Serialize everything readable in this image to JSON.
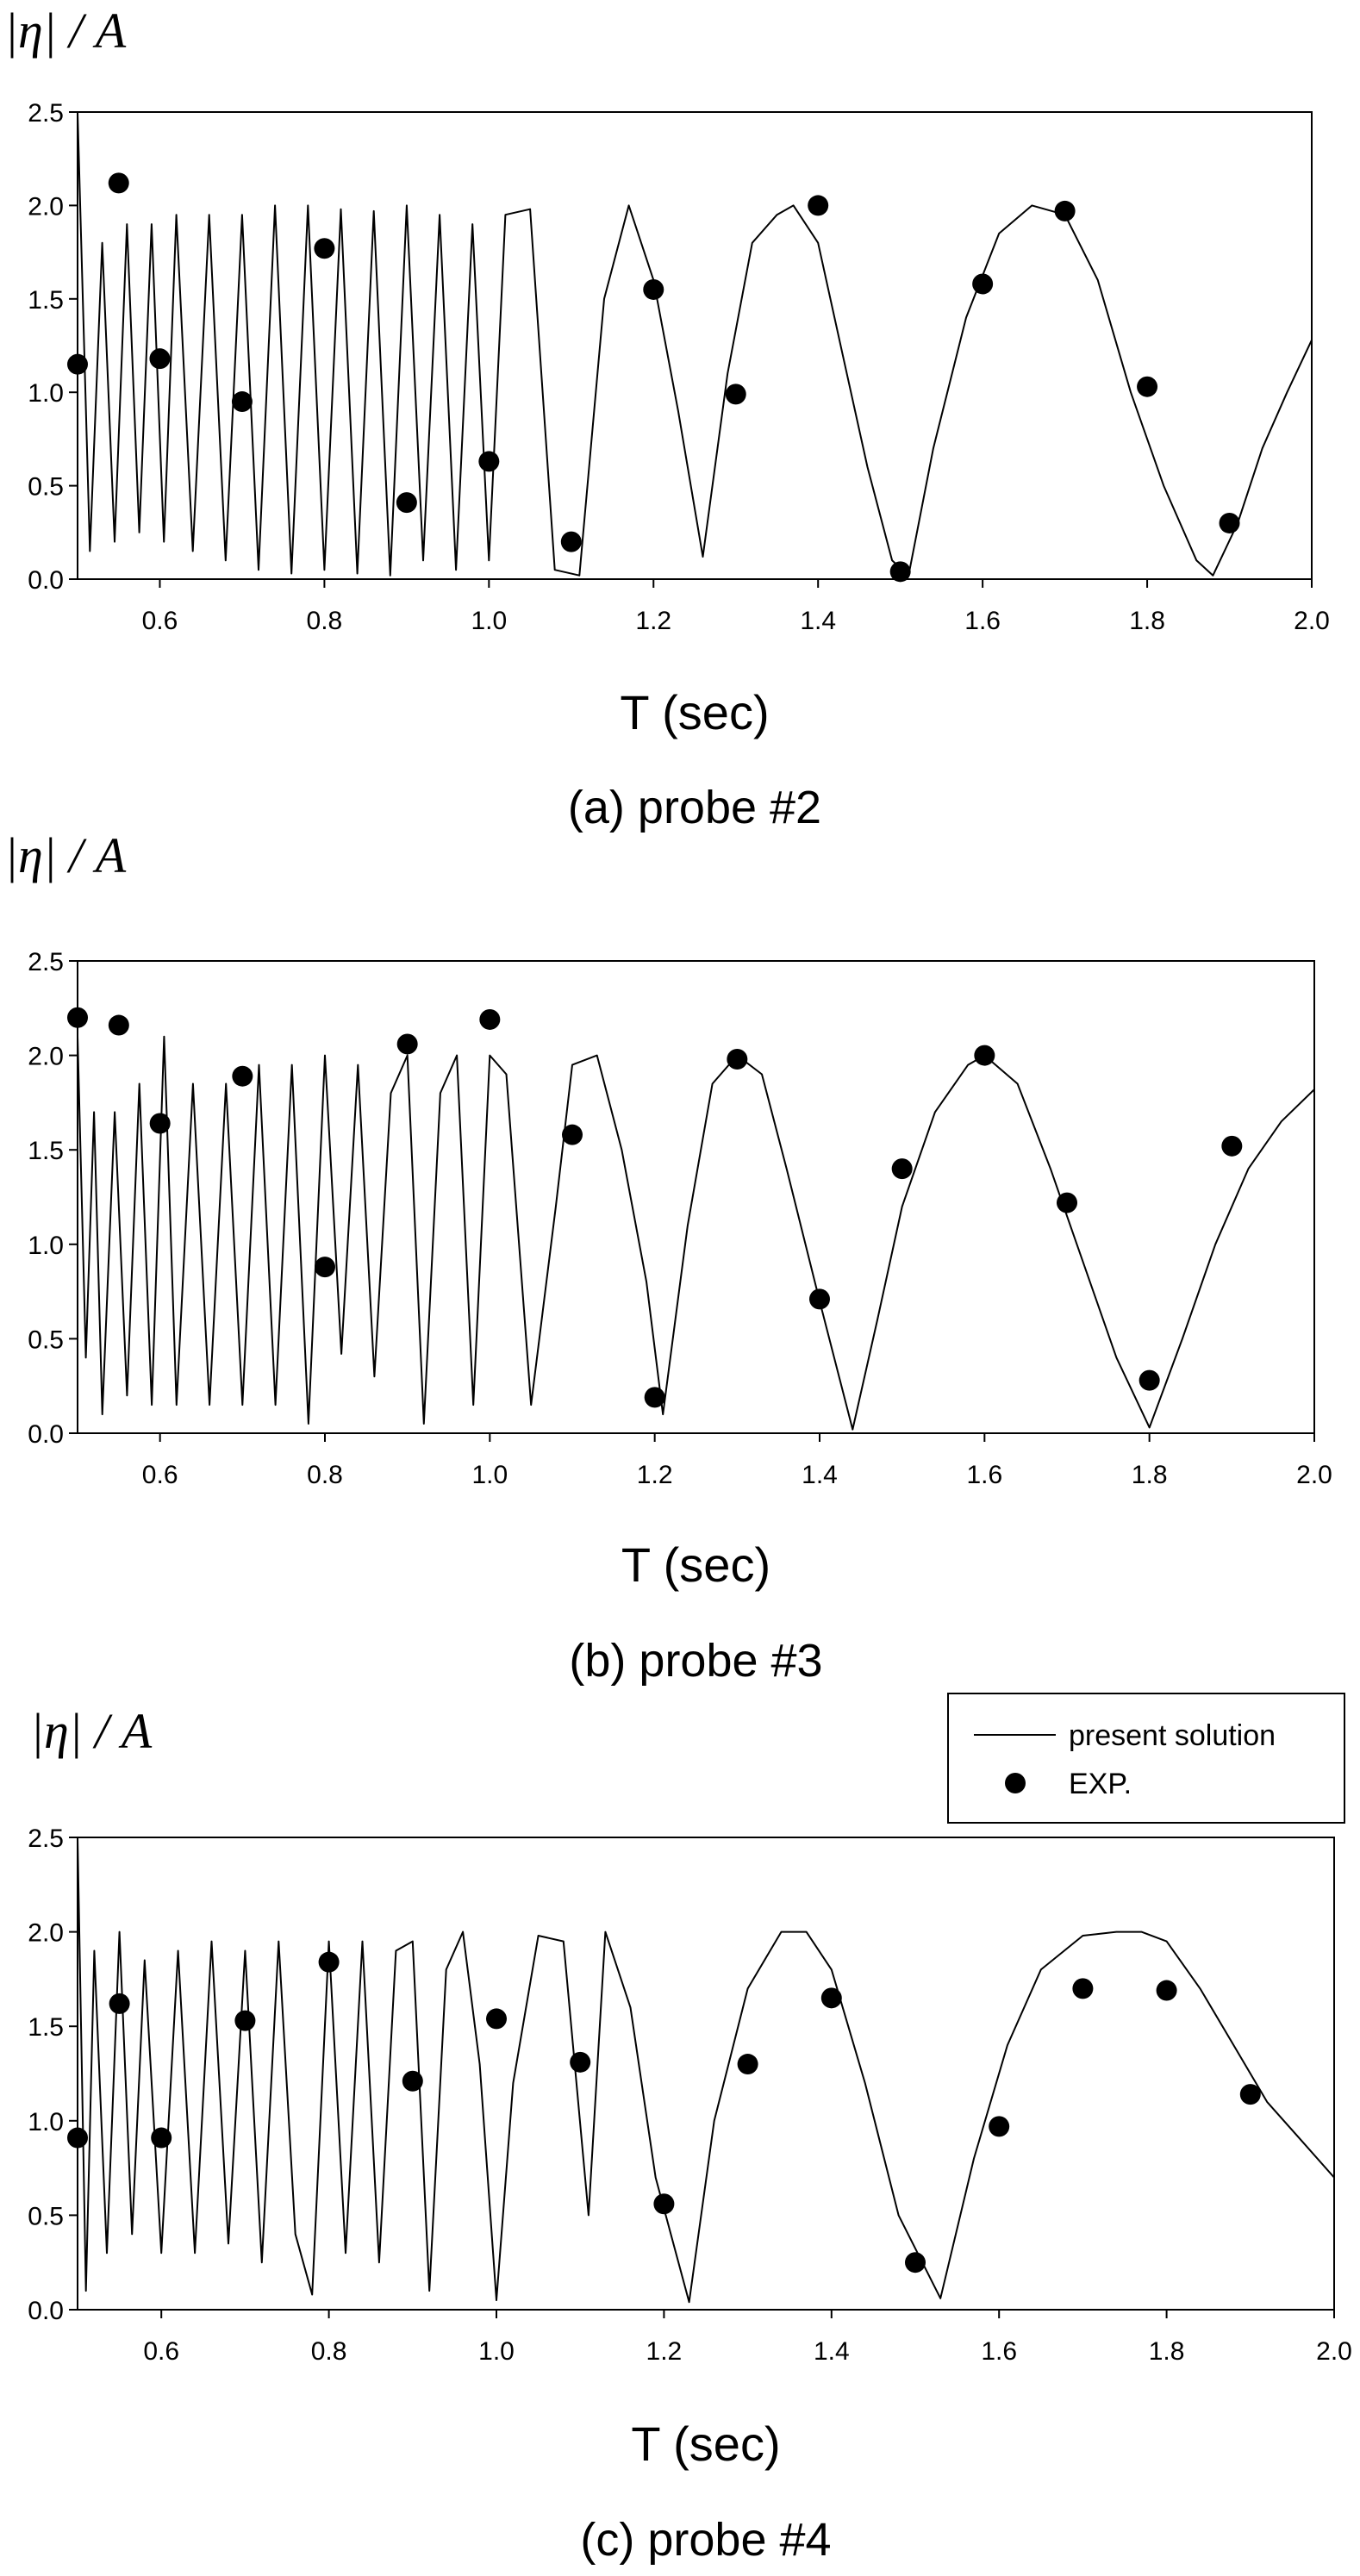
{
  "chart_data": [
    {
      "type": "line",
      "caption": "(a) probe #2",
      "ylabel": "|η| / A",
      "xlabel": "T (sec)",
      "xlim": [
        0.5,
        2.0
      ],
      "ylim": [
        0.0,
        2.5
      ],
      "xticks": [
        "0.6",
        "0.8",
        "1.0",
        "1.2",
        "1.4",
        "1.6",
        "1.8",
        "2.0"
      ],
      "yticks": [
        "0.0",
        "0.5",
        "1.0",
        "1.5",
        "2.0",
        "2.5"
      ],
      "series": [
        {
          "style": "line",
          "x": [
            0.5,
            0.515,
            0.53,
            0.545,
            0.56,
            0.575,
            0.59,
            0.605,
            0.62,
            0.64,
            0.66,
            0.68,
            0.7,
            0.72,
            0.74,
            0.76,
            0.78,
            0.8,
            0.82,
            0.84,
            0.86,
            0.88,
            0.9,
            0.92,
            0.94,
            0.96,
            0.98,
            1.0,
            1.02,
            1.05,
            1.08,
            1.11,
            1.14,
            1.17,
            1.2,
            1.23,
            1.26,
            1.29,
            1.32,
            1.35,
            1.37,
            1.4,
            1.43,
            1.46,
            1.49,
            1.51,
            1.54,
            1.58,
            1.62,
            1.66,
            1.7,
            1.74,
            1.78,
            1.82,
            1.86,
            1.88,
            1.91,
            1.94,
            1.97,
            2.0
          ],
          "y": [
            2.5,
            0.15,
            1.8,
            0.2,
            1.9,
            0.25,
            1.9,
            0.2,
            1.95,
            0.15,
            1.95,
            0.1,
            1.95,
            0.05,
            2.0,
            0.03,
            2.0,
            0.05,
            1.98,
            0.03,
            1.97,
            0.02,
            2.0,
            0.1,
            1.95,
            0.05,
            1.9,
            0.1,
            1.95,
            1.98,
            0.05,
            0.02,
            1.5,
            2.0,
            1.6,
            0.9,
            0.12,
            1.1,
            1.8,
            1.95,
            2.0,
            1.8,
            1.2,
            0.6,
            0.1,
            0.02,
            0.7,
            1.4,
            1.85,
            2.0,
            1.95,
            1.6,
            1.0,
            0.5,
            0.1,
            0.02,
            0.3,
            0.7,
            1.0,
            1.28
          ]
        },
        {
          "style": "points",
          "x": [
            0.5,
            0.55,
            0.6,
            0.7,
            0.8,
            0.9,
            1.0,
            1.1,
            1.2,
            1.3,
            1.4,
            1.5,
            1.6,
            1.7,
            1.8,
            1.9
          ],
          "y": [
            1.15,
            2.12,
            1.18,
            0.95,
            1.77,
            0.41,
            0.63,
            0.2,
            1.55,
            0.99,
            2.0,
            0.04,
            1.58,
            1.97,
            1.03,
            0.3
          ]
        }
      ]
    },
    {
      "type": "line",
      "caption": "(b) probe #3",
      "ylabel": "|η| / A",
      "xlabel": "T (sec)",
      "xlim": [
        0.5,
        2.0
      ],
      "ylim": [
        0.0,
        2.5
      ],
      "xticks": [
        "0.6",
        "0.8",
        "1.0",
        "1.2",
        "1.4",
        "1.6",
        "1.8",
        "2.0"
      ],
      "yticks": [
        "0.0",
        "0.5",
        "1.0",
        "1.5",
        "2.0",
        "2.5"
      ],
      "series": [
        {
          "style": "line",
          "x": [
            0.5,
            0.51,
            0.52,
            0.53,
            0.545,
            0.56,
            0.575,
            0.59,
            0.605,
            0.62,
            0.64,
            0.66,
            0.68,
            0.7,
            0.72,
            0.74,
            0.76,
            0.78,
            0.8,
            0.82,
            0.84,
            0.86,
            0.88,
            0.9,
            0.92,
            0.94,
            0.96,
            0.98,
            1.0,
            1.02,
            1.05,
            1.08,
            1.1,
            1.13,
            1.16,
            1.19,
            1.21,
            1.24,
            1.27,
            1.3,
            1.33,
            1.36,
            1.4,
            1.44,
            1.47,
            1.5,
            1.54,
            1.58,
            1.6,
            1.64,
            1.68,
            1.72,
            1.76,
            1.8,
            1.84,
            1.88,
            1.92,
            1.96,
            2.0
          ],
          "y": [
            2.1,
            0.4,
            1.7,
            0.1,
            1.7,
            0.2,
            1.85,
            0.15,
            2.1,
            0.15,
            1.85,
            0.15,
            1.85,
            0.15,
            1.95,
            0.15,
            1.95,
            0.05,
            2.0,
            0.42,
            1.95,
            0.3,
            1.8,
            2.0,
            0.05,
            1.8,
            2.0,
            0.15,
            2.0,
            1.9,
            0.15,
            1.2,
            1.95,
            2.0,
            1.5,
            0.8,
            0.1,
            1.1,
            1.85,
            2.0,
            1.9,
            1.4,
            0.7,
            0.02,
            0.6,
            1.2,
            1.7,
            1.95,
            2.0,
            1.85,
            1.4,
            0.9,
            0.4,
            0.03,
            0.5,
            1.0,
            1.4,
            1.65,
            1.82
          ]
        },
        {
          "style": "points",
          "x": [
            0.5,
            0.55,
            0.6,
            0.7,
            0.8,
            0.9,
            1.0,
            1.1,
            1.2,
            1.3,
            1.4,
            1.5,
            1.6,
            1.7,
            1.8,
            1.9
          ],
          "y": [
            2.2,
            2.16,
            1.64,
            1.89,
            0.88,
            2.06,
            2.19,
            1.58,
            0.19,
            1.98,
            0.71,
            1.4,
            2.0,
            1.22,
            0.28,
            1.52
          ]
        }
      ]
    },
    {
      "type": "line",
      "caption": "(c) probe #4",
      "ylabel": "|η| / A",
      "xlabel": "T (sec)",
      "xlim": [
        0.5,
        2.0
      ],
      "ylim": [
        0.0,
        2.5
      ],
      "xticks": [
        "0.6",
        "0.8",
        "1.0",
        "1.2",
        "1.4",
        "1.6",
        "1.8",
        "2.0"
      ],
      "yticks": [
        "0.0",
        "0.5",
        "1.0",
        "1.5",
        "2.0",
        "2.5"
      ],
      "legend": {
        "position": "top-right",
        "entries": [
          "present solution",
          "EXP."
        ]
      },
      "series": [
        {
          "name": "present solution",
          "style": "line",
          "x": [
            0.5,
            0.51,
            0.52,
            0.535,
            0.55,
            0.565,
            0.58,
            0.6,
            0.62,
            0.64,
            0.66,
            0.68,
            0.7,
            0.72,
            0.74,
            0.76,
            0.78,
            0.8,
            0.82,
            0.84,
            0.86,
            0.88,
            0.9,
            0.92,
            0.94,
            0.96,
            0.98,
            1.0,
            1.02,
            1.05,
            1.08,
            1.11,
            1.13,
            1.16,
            1.19,
            1.23,
            1.26,
            1.3,
            1.34,
            1.37,
            1.4,
            1.44,
            1.48,
            1.53,
            1.57,
            1.61,
            1.65,
            1.7,
            1.74,
            1.77,
            1.8,
            1.84,
            1.88,
            1.92,
            1.96,
            2.0
          ],
          "y": [
            2.5,
            0.1,
            1.9,
            0.3,
            2.0,
            0.4,
            1.85,
            0.3,
            1.9,
            0.3,
            1.95,
            0.35,
            1.9,
            0.25,
            1.95,
            0.4,
            0.08,
            1.95,
            0.3,
            1.95,
            0.25,
            1.9,
            1.95,
            0.1,
            1.8,
            2.0,
            1.3,
            0.05,
            1.2,
            1.98,
            1.95,
            0.5,
            2.0,
            1.6,
            0.7,
            0.04,
            1.0,
            1.7,
            2.0,
            2.0,
            1.8,
            1.2,
            0.5,
            0.06,
            0.8,
            1.4,
            1.8,
            1.98,
            2.0,
            2.0,
            1.95,
            1.7,
            1.4,
            1.1,
            0.9,
            0.7
          ]
        },
        {
          "name": "EXP.",
          "style": "points",
          "x": [
            0.5,
            0.55,
            0.6,
            0.7,
            0.8,
            0.9,
            1.0,
            1.1,
            1.2,
            1.3,
            1.4,
            1.5,
            1.6,
            1.7,
            1.8,
            1.9
          ],
          "y": [
            0.91,
            1.62,
            0.91,
            1.53,
            1.84,
            1.21,
            1.54,
            1.31,
            0.56,
            1.3,
            1.65,
            0.25,
            0.97,
            1.7,
            1.69,
            1.14
          ]
        }
      ]
    }
  ]
}
